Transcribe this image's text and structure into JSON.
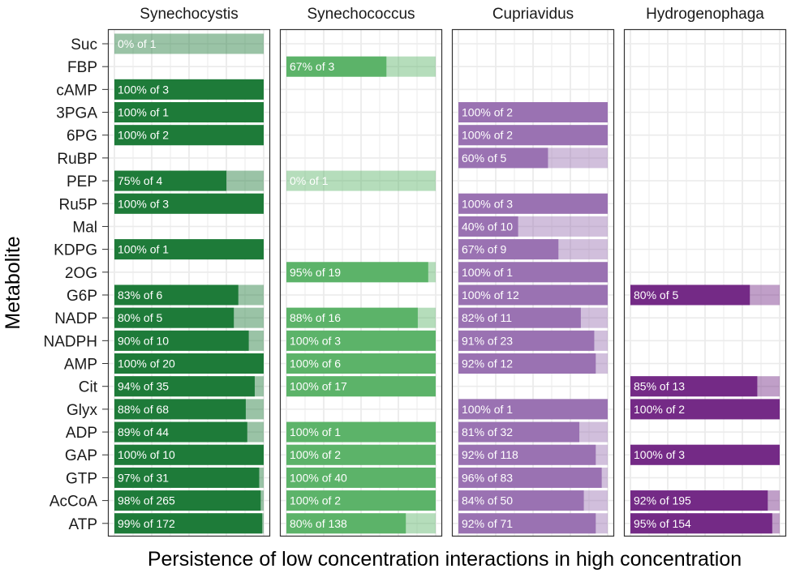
{
  "chart_data": {
    "type": "bar",
    "orientation": "horizontal",
    "xlabel": "Persistence of low concentration interactions in high concentration",
    "ylabel": "Metabolite",
    "xlim": [
      0,
      1
    ],
    "grid": true,
    "categories": [
      "Suc",
      "FBP",
      "cAMP",
      "3PGA",
      "6PG",
      "RuBP",
      "PEP",
      "Ru5P",
      "Mal",
      "KDPG",
      "2OG",
      "G6P",
      "NADP",
      "NADPH",
      "AMP",
      "Cit",
      "Glyx",
      "ADP",
      "GAP",
      "GTP",
      "AcCoA",
      "ATP"
    ],
    "facets": [
      {
        "name": "Synechocystis",
        "color": "#1e7b39",
        "bars": [
          {
            "metabolite": "Suc",
            "fraction": 0.0,
            "label": "0% of 1"
          },
          {
            "metabolite": "cAMP",
            "fraction": 1.0,
            "label": "100% of 3"
          },
          {
            "metabolite": "3PGA",
            "fraction": 1.0,
            "label": "100% of 1"
          },
          {
            "metabolite": "6PG",
            "fraction": 1.0,
            "label": "100% of 2"
          },
          {
            "metabolite": "PEP",
            "fraction": 0.75,
            "label": "75% of 4"
          },
          {
            "metabolite": "Ru5P",
            "fraction": 1.0,
            "label": "100% of 3"
          },
          {
            "metabolite": "KDPG",
            "fraction": 1.0,
            "label": "100% of 1"
          },
          {
            "metabolite": "G6P",
            "fraction": 0.83,
            "label": "83% of 6"
          },
          {
            "metabolite": "NADP",
            "fraction": 0.8,
            "label": "80% of 5"
          },
          {
            "metabolite": "NADPH",
            "fraction": 0.9,
            "label": "90% of 10"
          },
          {
            "metabolite": "AMP",
            "fraction": 1.0,
            "label": "100% of 20"
          },
          {
            "metabolite": "Cit",
            "fraction": 0.94,
            "label": "94% of 35"
          },
          {
            "metabolite": "Glyx",
            "fraction": 0.88,
            "label": "88% of 68"
          },
          {
            "metabolite": "ADP",
            "fraction": 0.89,
            "label": "89% of 44"
          },
          {
            "metabolite": "GAP",
            "fraction": 1.0,
            "label": "100% of 10"
          },
          {
            "metabolite": "GTP",
            "fraction": 0.97,
            "label": "97% of 31"
          },
          {
            "metabolite": "AcCoA",
            "fraction": 0.98,
            "label": "98% of 265"
          },
          {
            "metabolite": "ATP",
            "fraction": 0.99,
            "label": "99% of 172"
          }
        ]
      },
      {
        "name": "Synechococcus",
        "color": "#5cb369",
        "bars": [
          {
            "metabolite": "FBP",
            "fraction": 0.67,
            "label": "67% of 3"
          },
          {
            "metabolite": "PEP",
            "fraction": 0.0,
            "label": "0% of 1"
          },
          {
            "metabolite": "2OG",
            "fraction": 0.95,
            "label": "95% of 19"
          },
          {
            "metabolite": "NADP",
            "fraction": 0.88,
            "label": "88% of 16"
          },
          {
            "metabolite": "NADPH",
            "fraction": 1.0,
            "label": "100% of 3"
          },
          {
            "metabolite": "AMP",
            "fraction": 1.0,
            "label": "100% of 6"
          },
          {
            "metabolite": "Cit",
            "fraction": 1.0,
            "label": "100% of 17"
          },
          {
            "metabolite": "ADP",
            "fraction": 1.0,
            "label": "100% of 1"
          },
          {
            "metabolite": "GAP",
            "fraction": 1.0,
            "label": "100% of 2"
          },
          {
            "metabolite": "GTP",
            "fraction": 1.0,
            "label": "100% of 40"
          },
          {
            "metabolite": "AcCoA",
            "fraction": 1.0,
            "label": "100% of 2"
          },
          {
            "metabolite": "ATP",
            "fraction": 0.8,
            "label": "80% of 138"
          }
        ]
      },
      {
        "name": "Cupriavidus",
        "color": "#9a72b2",
        "bars": [
          {
            "metabolite": "3PGA",
            "fraction": 1.0,
            "label": "100% of 2"
          },
          {
            "metabolite": "6PG",
            "fraction": 1.0,
            "label": "100% of 2"
          },
          {
            "metabolite": "RuBP",
            "fraction": 0.6,
            "label": "60% of 5"
          },
          {
            "metabolite": "Ru5P",
            "fraction": 1.0,
            "label": "100% of 3"
          },
          {
            "metabolite": "Mal",
            "fraction": 0.4,
            "label": "40% of 10"
          },
          {
            "metabolite": "KDPG",
            "fraction": 0.67,
            "label": "67% of 9"
          },
          {
            "metabolite": "2OG",
            "fraction": 1.0,
            "label": "100% of 1"
          },
          {
            "metabolite": "G6P",
            "fraction": 1.0,
            "label": "100% of 12"
          },
          {
            "metabolite": "NADP",
            "fraction": 0.82,
            "label": "82% of 11"
          },
          {
            "metabolite": "NADPH",
            "fraction": 0.91,
            "label": "91% of 23"
          },
          {
            "metabolite": "AMP",
            "fraction": 0.92,
            "label": "92% of 12"
          },
          {
            "metabolite": "Glyx",
            "fraction": 1.0,
            "label": "100% of 1"
          },
          {
            "metabolite": "ADP",
            "fraction": 0.81,
            "label": "81% of 32"
          },
          {
            "metabolite": "GAP",
            "fraction": 0.92,
            "label": "92% of 118"
          },
          {
            "metabolite": "GTP",
            "fraction": 0.96,
            "label": "96% of 83"
          },
          {
            "metabolite": "AcCoA",
            "fraction": 0.84,
            "label": "84% of 50"
          },
          {
            "metabolite": "ATP",
            "fraction": 0.92,
            "label": "92% of 71"
          }
        ]
      },
      {
        "name": "Hydrogenophaga",
        "color": "#742a86",
        "bars": [
          {
            "metabolite": "G6P",
            "fraction": 0.8,
            "label": "80% of 5"
          },
          {
            "metabolite": "Cit",
            "fraction": 0.85,
            "label": "85% of 13"
          },
          {
            "metabolite": "Glyx",
            "fraction": 1.0,
            "label": "100% of 2"
          },
          {
            "metabolite": "GAP",
            "fraction": 1.0,
            "label": "100% of 3"
          },
          {
            "metabolite": "AcCoA",
            "fraction": 0.92,
            "label": "92% of 195"
          },
          {
            "metabolite": "ATP",
            "fraction": 0.95,
            "label": "95% of 154"
          }
        ]
      }
    ]
  }
}
